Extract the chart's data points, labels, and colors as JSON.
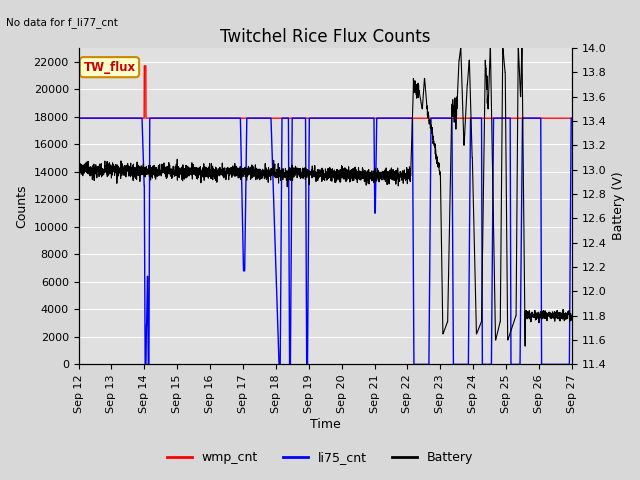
{
  "title": "Twitchel Rice Flux Counts",
  "no_data_text": "No data for f_li77_cnt",
  "xlabel": "Time",
  "ylabel_left": "Counts",
  "ylabel_right": "Battery (V)",
  "ylim_left": [
    0,
    23000
  ],
  "ylim_right": [
    11.4,
    14.0
  ],
  "yticks_left": [
    0,
    2000,
    4000,
    6000,
    8000,
    10000,
    12000,
    14000,
    16000,
    18000,
    20000,
    22000
  ],
  "yticks_right": [
    11.4,
    11.6,
    11.8,
    12.0,
    12.2,
    12.4,
    12.6,
    12.8,
    13.0,
    13.2,
    13.4,
    13.6,
    13.8,
    14.0
  ],
  "xtick_labels": [
    "Sep 12",
    "Sep 13",
    "Sep 14",
    "Sep 15",
    "Sep 16",
    "Sep 17",
    "Sep 18",
    "Sep 19",
    "Sep 20",
    "Sep 21",
    "Sep 22",
    "Sep 23",
    "Sep 24",
    "Sep 25",
    "Sep 26",
    "Sep 27"
  ],
  "xtick_values": [
    0,
    1,
    2,
    3,
    4,
    5,
    6,
    7,
    8,
    9,
    10,
    11,
    12,
    13,
    14,
    15
  ],
  "xlim": [
    0,
    15
  ],
  "figure_bg": "#d8d8d8",
  "plot_bg": "#e0e0e0",
  "grid_color": "#ffffff",
  "wmp_color": "#ff0000",
  "li75_color": "#0000ff",
  "battery_color": "#000000",
  "tw_flux_box_facecolor": "#ffffcc",
  "tw_flux_text_color": "#cc0000",
  "tw_flux_border_color": "#cc8800",
  "legend_colors": [
    "red",
    "blue",
    "black"
  ],
  "legend_labels": [
    "wmp_cnt",
    "li75_cnt",
    "Battery"
  ],
  "title_fontsize": 12,
  "label_fontsize": 9,
  "tick_fontsize": 8
}
